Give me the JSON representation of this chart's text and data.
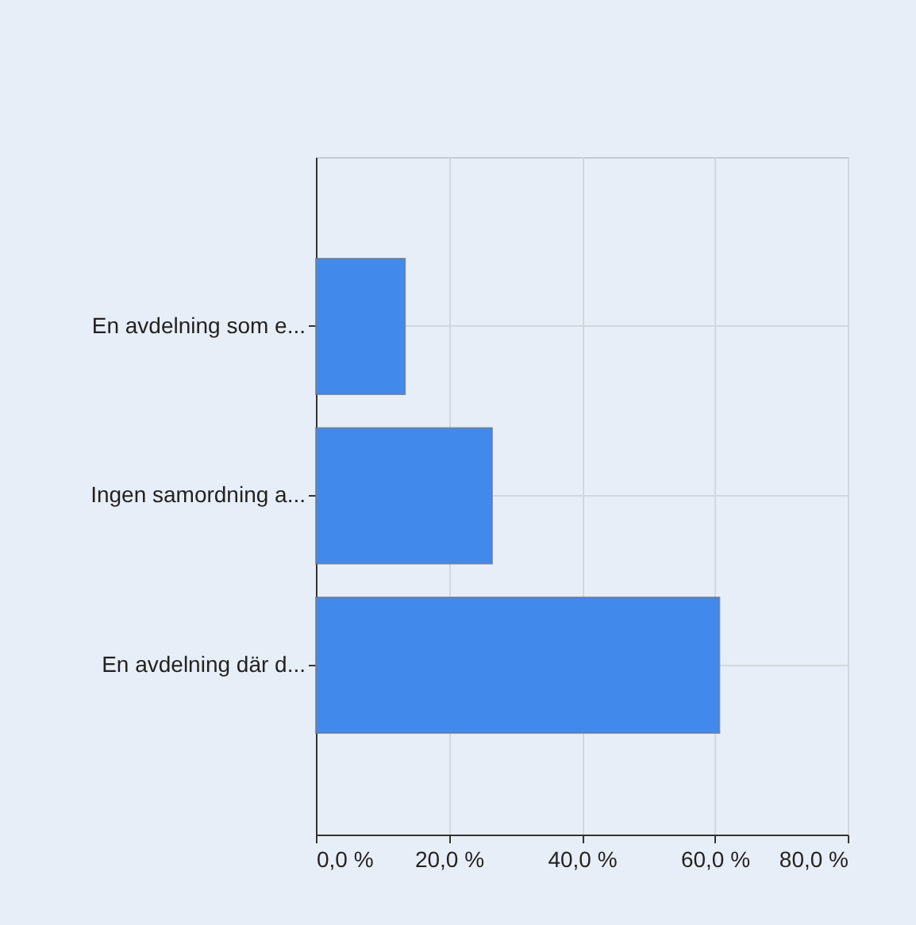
{
  "chart_data": {
    "type": "bar",
    "orientation": "horizontal",
    "categories": [
      "En avdelning som e...",
      "Ingen samordning a...",
      "En avdelning där d..."
    ],
    "values": [
      13.4,
      26.5,
      60.7
    ],
    "color": "#418aec",
    "xlim": [
      0,
      80
    ],
    "xticks": [
      {
        "value": 0,
        "label": "0,0 %"
      },
      {
        "value": 20,
        "label": "20,0 %"
      },
      {
        "value": 40,
        "label": "40,0 %"
      },
      {
        "value": 60,
        "label": "60,0 %"
      },
      {
        "value": 80,
        "label": "80,0 %"
      }
    ],
    "grid": true
  }
}
